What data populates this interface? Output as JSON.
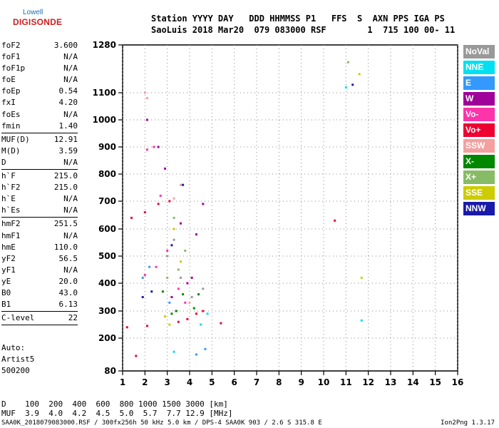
{
  "logo": {
    "line1": "Lowell",
    "line2": "DIGISONDE"
  },
  "header": {
    "line1": "Station YYYY DAY   DDD HHMMSS P1   FFS  S  AXN PPS IGA PS",
    "line2": "SaoLuis 2018 Mar20  079 083000 RSF        1  715 100 00- 11"
  },
  "params": {
    "group1": [
      {
        "label": "foF2",
        "value": "3.600"
      },
      {
        "label": "foF1",
        "value": "N/A"
      },
      {
        "label": "foF1p",
        "value": "N/A"
      },
      {
        "label": "foE",
        "value": "N/A"
      },
      {
        "label": "foEp",
        "value": "0.54"
      },
      {
        "label": "fxI",
        "value": "4.20"
      },
      {
        "label": "foEs",
        "value": "N/A"
      },
      {
        "label": "fmin",
        "value": "1.40"
      }
    ],
    "group2": [
      {
        "label": "MUF(D)",
        "value": "12.91"
      },
      {
        "label": "M(D)",
        "value": "3.59"
      },
      {
        "label": "D",
        "value": "N/A"
      }
    ],
    "group3": [
      {
        "label": "h`F",
        "value": "215.0"
      },
      {
        "label": "h`F2",
        "value": "215.0"
      },
      {
        "label": "h`E",
        "value": "N/A"
      },
      {
        "label": "h`Es",
        "value": "N/A"
      }
    ],
    "group4": [
      {
        "label": "hmF2",
        "value": "251.5"
      },
      {
        "label": "hmF1",
        "value": "N/A"
      },
      {
        "label": "hmE",
        "value": "110.0"
      },
      {
        "label": "yF2",
        "value": "56.5"
      },
      {
        "label": "yF1",
        "value": "N/A"
      },
      {
        "label": "yE",
        "value": "20.0"
      },
      {
        "label": "B0",
        "value": "43.0"
      },
      {
        "label": "B1",
        "value": "6.13"
      }
    ],
    "group5": [
      {
        "label": "C-level",
        "value": "22"
      }
    ]
  },
  "auto": {
    "line1": "Auto:",
    "line2": "Artist5",
    "line3": "500200"
  },
  "legend": [
    {
      "label": "NoVal",
      "color": "#999999"
    },
    {
      "label": "NNE",
      "color": "#00e0f0"
    },
    {
      "label": "E",
      "color": "#3399ff"
    },
    {
      "label": "W",
      "color": "#a0009a"
    },
    {
      "label": "Vo-",
      "color": "#ff33aa"
    },
    {
      "label": "Vo+",
      "color": "#ee0033"
    },
    {
      "label": "SSW",
      "color": "#f4a0a0"
    },
    {
      "label": "X-",
      "color": "#008800"
    },
    {
      "label": "X+",
      "color": "#88bb66"
    },
    {
      "label": "SSE",
      "color": "#cccc00"
    },
    {
      "label": "NNW",
      "color": "#1a1aaa"
    }
  ],
  "dtable": {
    "d_row": "D    100  200  400  600  800 1000 1500 3000 [km]",
    "muf_row": "MUF  3.9  4.0  4.2  4.5  5.0  5.7  7.7 12.9 [MHz]"
  },
  "footer": {
    "left": "SAA0K_2018079083000.RSF / 300fx256h 50 kHz 5.0 km / DPS-4 SAA0K 903 / 2.6 S 315.8 E",
    "right": "Ion2Png 1.3.17"
  },
  "chart_data": {
    "type": "scatter",
    "x_ticks": [
      "1",
      "2",
      "3",
      "4",
      "5",
      "6",
      "7",
      "8",
      "9",
      "10",
      "11",
      "12",
      "13",
      "14",
      "15",
      "16"
    ],
    "y_ticks": [
      "80",
      "200",
      "300",
      "400",
      "500",
      "600",
      "700",
      "800",
      "900",
      "1000",
      "1100",
      "1280"
    ],
    "xlim": [
      1,
      16
    ],
    "ylim": [
      80,
      1280
    ],
    "series": [
      {
        "name": "NoVal",
        "color": "#999999",
        "points": [
          [
            3.4,
            300
          ],
          [
            3.6,
            420
          ],
          [
            4.1,
            350
          ],
          [
            4.6,
            380
          ],
          [
            3.0,
            500
          ],
          [
            3.3,
            560
          ]
        ]
      },
      {
        "name": "NNE",
        "color": "#00e0f0",
        "points": [
          [
            11.0,
            1120
          ],
          [
            11.7,
            265
          ],
          [
            3.3,
            150
          ],
          [
            4.5,
            250
          ],
          [
            4.8,
            290
          ]
        ]
      },
      {
        "name": "E",
        "color": "#3399ff",
        "points": [
          [
            4.3,
            140
          ],
          [
            4.7,
            160
          ],
          [
            1.9,
            420
          ],
          [
            2.2,
            460
          ],
          [
            3.1,
            330
          ]
        ]
      },
      {
        "name": "W",
        "color": "#a0009a",
        "points": [
          [
            2.1,
            1000
          ],
          [
            2.6,
            900
          ],
          [
            2.9,
            820
          ],
          [
            3.6,
            620
          ],
          [
            4.3,
            580
          ],
          [
            4.6,
            690
          ],
          [
            3.2,
            350
          ],
          [
            3.9,
            400
          ],
          [
            4.1,
            420
          ],
          [
            3.4,
            300
          ]
        ]
      },
      {
        "name": "Vo-",
        "color": "#ff33aa",
        "points": [
          [
            2.0,
            430
          ],
          [
            2.5,
            460
          ],
          [
            3.0,
            520
          ],
          [
            3.5,
            380
          ],
          [
            3.8,
            330
          ],
          [
            2.1,
            890
          ],
          [
            2.4,
            900
          ],
          [
            2.7,
            720
          ]
        ]
      },
      {
        "name": "Vo+",
        "color": "#ee0033",
        "points": [
          [
            1.4,
            640
          ],
          [
            2.0,
            660
          ],
          [
            2.6,
            690
          ],
          [
            3.1,
            700
          ],
          [
            3.5,
            260
          ],
          [
            3.9,
            270
          ],
          [
            4.3,
            290
          ],
          [
            4.6,
            300
          ],
          [
            5.4,
            255
          ],
          [
            10.5,
            630
          ],
          [
            1.6,
            135
          ],
          [
            1.2,
            240
          ],
          [
            2.1,
            245
          ]
        ]
      },
      {
        "name": "SSW",
        "color": "#f4a0a0",
        "points": [
          [
            2.1,
            1080
          ],
          [
            2.0,
            1100
          ],
          [
            3.3,
            710
          ],
          [
            3.6,
            760
          ],
          [
            4.0,
            330
          ]
        ]
      },
      {
        "name": "X-",
        "color": "#008800",
        "points": [
          [
            3.4,
            300
          ],
          [
            3.7,
            360
          ],
          [
            4.2,
            310
          ],
          [
            4.4,
            360
          ],
          [
            2.8,
            370
          ],
          [
            3.2,
            290
          ]
        ]
      },
      {
        "name": "X+",
        "color": "#88bb66",
        "points": [
          [
            11.1,
            1215
          ],
          [
            3.0,
            420
          ],
          [
            3.5,
            450
          ],
          [
            3.8,
            520
          ],
          [
            3.3,
            640
          ]
        ]
      },
      {
        "name": "SSE",
        "color": "#cccc00",
        "points": [
          [
            11.7,
            420
          ],
          [
            11.6,
            1170
          ],
          [
            3.3,
            600
          ],
          [
            3.6,
            480
          ],
          [
            2.9,
            280
          ],
          [
            3.1,
            250
          ]
        ]
      },
      {
        "name": "NNW",
        "color": "#1a1aaa",
        "points": [
          [
            11.3,
            1130
          ],
          [
            1.9,
            350
          ],
          [
            2.3,
            370
          ],
          [
            3.2,
            540
          ],
          [
            3.7,
            760
          ]
        ]
      }
    ],
    "grid": true,
    "legend_position": "right"
  }
}
